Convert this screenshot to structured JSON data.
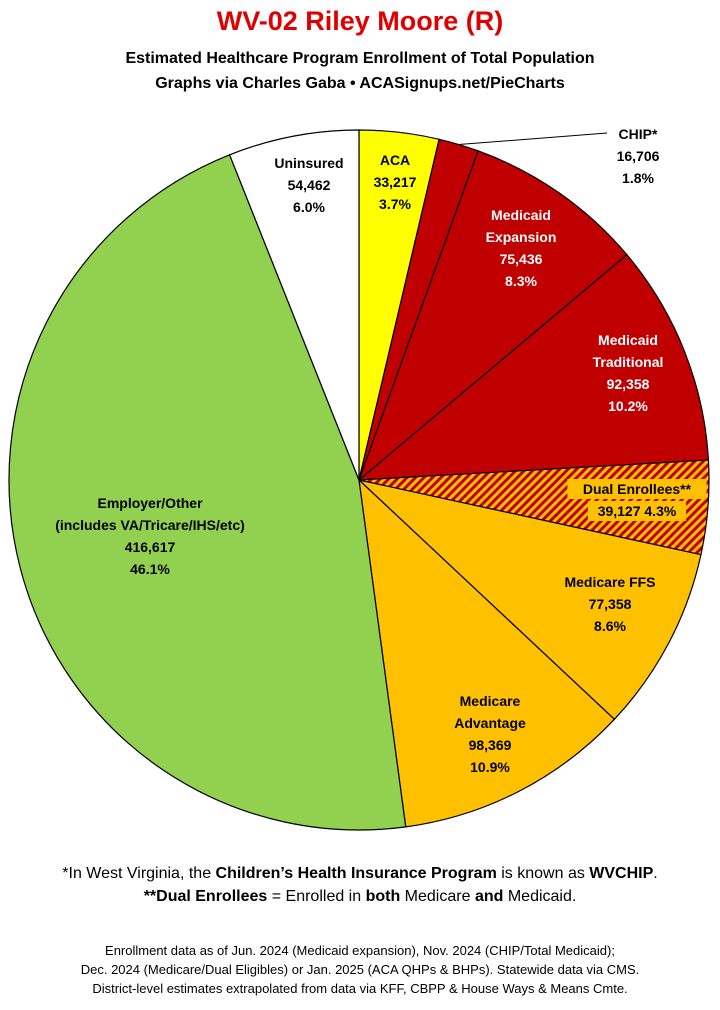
{
  "header": {
    "title": "WV-02 Riley Moore (R)",
    "subtitle_line1": "Estimated Healthcare Program Enrollment of Total Population",
    "subtitle_line2": "Graphs via Charles Gaba  •  ACASignups.net/PieCharts"
  },
  "footnotes": {
    "chip_prefix": "*In West Virginia, the ",
    "chip_name": "Children’s Health Insurance Program",
    "chip_middle": " is known as ",
    "chip_local": "WVCHIP",
    "chip_end": ".",
    "dual_term": "**Dual Enrollees",
    "dual_eq": " = Enrolled in ",
    "dual_both": "both",
    "dual_mid": " Medicare ",
    "dual_and": "and",
    "dual_end": " Medicaid."
  },
  "fineprint": {
    "line1": "Enrollment data as of Jun. 2024 (Medicaid expansion), Nov. 2024 (CHIP/Total Medicaid);",
    "line2": "Dec. 2024 (Medicare/Dual Eligibles) or Jan. 2025 (ACA QHPs & BHPs). Statewide data via CMS.",
    "line3": "District-level estimates extrapolated from data via KFF, CBPP & House Ways & Means Cmte."
  },
  "chart_data": {
    "type": "pie",
    "title": "WV-02 Riley Moore (R)",
    "start": "12 o'clock, clockwise",
    "colors": {
      "aca": "#ffff00",
      "medicaid": "#c00000",
      "medicare": "#ffc000",
      "employer": "#92d050",
      "uninsured": "#ffffff",
      "dual_hatch": "#c00000"
    },
    "slices": [
      {
        "key": "aca",
        "label_lines": [
          "ACA"
        ],
        "value": 33217,
        "value_text": "33,217",
        "percent": "3.7%",
        "color": "#ffff00",
        "text_color": "#000000"
      },
      {
        "key": "chip",
        "label_lines": [
          "CHIP*"
        ],
        "value": 16706,
        "value_text": "16,706",
        "percent": "1.8%",
        "color": "#c00000",
        "text_color": "#000000"
      },
      {
        "key": "medicaid_expansion",
        "label_lines": [
          "Medicaid",
          "Expansion"
        ],
        "value": 75436,
        "value_text": "75,436",
        "percent": "8.3%",
        "color": "#c00000",
        "text_color": "#ffffff"
      },
      {
        "key": "medicaid_traditional",
        "label_lines": [
          "Medicaid",
          "Traditional"
        ],
        "value": 92358,
        "value_text": "92,358",
        "percent": "10.2%",
        "color": "#c00000",
        "text_color": "#ffffff"
      },
      {
        "key": "dual_enrollees",
        "label_lines": [
          "Dual Enrollees**"
        ],
        "value": 39127,
        "value_text": "39,127",
        "percent": "4.3%",
        "color": "#ffc000",
        "hatch": true,
        "text_color": "#000000"
      },
      {
        "key": "medicare_ffs",
        "label_lines": [
          "Medicare FFS"
        ],
        "value": 77358,
        "value_text": "77,358",
        "percent": "8.6%",
        "color": "#ffc000",
        "text_color": "#000000"
      },
      {
        "key": "medicare_advantage",
        "label_lines": [
          "Medicare",
          "Advantage"
        ],
        "value": 98369,
        "value_text": "98,369",
        "percent": "10.9%",
        "color": "#ffc000",
        "text_color": "#000000"
      },
      {
        "key": "employer_other",
        "label_lines": [
          "Employer/Other",
          "(includes VA/Tricare/IHS/etc)"
        ],
        "value": 416617,
        "value_text": "416,617",
        "percent": "46.1%",
        "color": "#92d050",
        "text_color": "#000000"
      },
      {
        "key": "uninsured",
        "label_lines": [
          "Uninsured"
        ],
        "value": 54462,
        "value_text": "54,462",
        "percent": "6.0%",
        "color": "#ffffff",
        "text_color": "#000000"
      }
    ]
  }
}
